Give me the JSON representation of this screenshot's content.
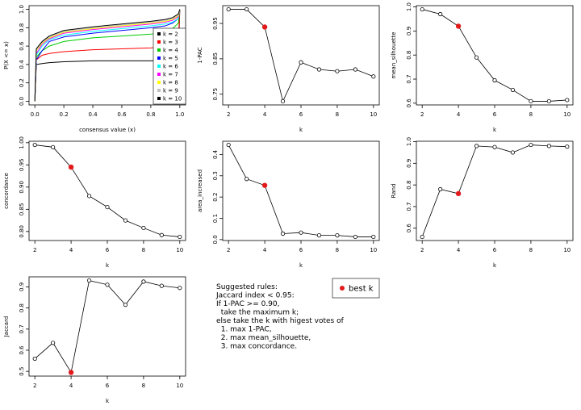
{
  "chart_data": [
    {
      "type": "ecdf",
      "xlabel": "consensus value (x)",
      "ylabel": "P(X <= x)",
      "xlim": [
        0,
        1
      ],
      "ylim": [
        0,
        1
      ],
      "xticks": [
        {
          "value": 0,
          "label": "0.0"
        },
        0.2,
        0.4,
        0.6,
        0.8,
        {
          "value": 1,
          "label": "1.0"
        }
      ],
      "yticks": [
        {
          "value": 0,
          "label": "0.0"
        },
        0.2,
        0.4,
        0.6,
        0.8,
        {
          "value": 1,
          "label": "1.0"
        }
      ],
      "x": [
        0,
        0.01,
        0.05,
        0.1,
        0.2,
        0.4,
        0.6,
        0.8,
        0.9,
        0.95,
        0.99,
        1
      ],
      "legend": "right",
      "series": [
        {
          "name": "k = 2",
          "color": "#000000",
          "values": [
            0,
            0.4,
            0.41,
            0.42,
            0.43,
            0.44,
            0.44,
            0.44,
            0.45,
            0.46,
            0.5,
            1
          ]
        },
        {
          "name": "k = 3",
          "color": "#ff0000",
          "values": [
            0,
            0.45,
            0.5,
            0.52,
            0.54,
            0.56,
            0.57,
            0.58,
            0.6,
            0.62,
            0.66,
            1
          ]
        },
        {
          "name": "k = 4",
          "color": "#00cd00",
          "values": [
            0,
            0.48,
            0.55,
            0.6,
            0.65,
            0.69,
            0.71,
            0.73,
            0.75,
            0.79,
            0.85,
            1
          ]
        },
        {
          "name": "k = 5",
          "color": "#0000ff",
          "values": [
            0,
            0.45,
            0.55,
            0.65,
            0.7,
            0.74,
            0.77,
            0.8,
            0.82,
            0.85,
            0.9,
            1
          ]
        },
        {
          "name": "k = 6",
          "color": "#00ffff",
          "values": [
            0,
            0.5,
            0.6,
            0.67,
            0.72,
            0.76,
            0.79,
            0.82,
            0.84,
            0.86,
            0.9,
            1
          ]
        },
        {
          "name": "k = 7",
          "color": "#ff00ff",
          "values": [
            0,
            0.52,
            0.62,
            0.68,
            0.74,
            0.78,
            0.81,
            0.84,
            0.86,
            0.88,
            0.92,
            1
          ]
        },
        {
          "name": "k = 8",
          "color": "#ffff00",
          "values": [
            0,
            0.55,
            0.63,
            0.69,
            0.75,
            0.79,
            0.82,
            0.85,
            0.87,
            0.89,
            0.93,
            1
          ]
        },
        {
          "name": "k = 9",
          "color": "#bebebe",
          "values": [
            0,
            0.56,
            0.64,
            0.7,
            0.76,
            0.8,
            0.83,
            0.86,
            0.88,
            0.9,
            0.94,
            1
          ]
        },
        {
          "name": "k = 10",
          "color": "#000000",
          "values": [
            0,
            0.57,
            0.65,
            0.71,
            0.77,
            0.81,
            0.84,
            0.87,
            0.89,
            0.91,
            0.95,
            1
          ]
        }
      ]
    },
    {
      "type": "line",
      "xlabel": "k",
      "ylabel": "1-PAC",
      "x": [
        2,
        3,
        4,
        5,
        6,
        7,
        8,
        9,
        10
      ],
      "best_k": 4,
      "values": [
        0.99,
        0.99,
        0.94,
        0.73,
        0.84,
        0.82,
        0.815,
        0.82,
        0.8
      ],
      "xlim": [
        2,
        10
      ],
      "ylim": [
        0.73,
        0.99
      ],
      "xticks": [
        2,
        4,
        6,
        8,
        10
      ],
      "yticks": [
        0.75,
        0.85,
        0.95
      ]
    },
    {
      "type": "line",
      "xlabel": "k",
      "ylabel": "mean_silhouette",
      "x": [
        2,
        3,
        4,
        5,
        6,
        7,
        8,
        9,
        10
      ],
      "best_k": 4,
      "values": [
        0.99,
        0.97,
        0.92,
        0.79,
        0.695,
        0.655,
        0.608,
        0.608,
        0.613
      ],
      "xlim": [
        2,
        10
      ],
      "ylim": [
        0.608,
        0.99
      ],
      "xticks": [
        2,
        4,
        6,
        8,
        10
      ],
      "yticks": [
        0.6,
        0.7,
        0.8,
        0.9,
        {
          "value": 1,
          "label": "1.0"
        }
      ]
    },
    {
      "type": "line",
      "xlabel": "k",
      "ylabel": "concordance",
      "x": [
        2,
        3,
        4,
        5,
        6,
        7,
        8,
        9,
        10
      ],
      "best_k": 4,
      "values": [
        0.995,
        0.99,
        0.945,
        0.88,
        0.855,
        0.825,
        0.808,
        0.792,
        0.788
      ],
      "xlim": [
        2,
        10
      ],
      "ylim": [
        0.788,
        0.995
      ],
      "xticks": [
        2,
        4,
        6,
        8,
        10
      ],
      "yticks": [
        {
          "value": 0.8,
          "label": "0.80"
        },
        0.85,
        {
          "value": 0.9,
          "label": "0.90"
        },
        0.95,
        {
          "value": 1,
          "label": "1.00"
        }
      ]
    },
    {
      "type": "line",
      "xlabel": "k",
      "ylabel": "area_increased",
      "x": [
        2,
        3,
        4,
        5,
        6,
        7,
        8,
        9,
        10
      ],
      "best_k": 4,
      "values": [
        0.445,
        0.285,
        0.255,
        0.028,
        0.033,
        0.02,
        0.02,
        0.013,
        0.013
      ],
      "xlim": [
        2,
        10
      ],
      "ylim": [
        0.013,
        0.445
      ],
      "xticks": [
        2,
        4,
        6,
        8,
        10
      ],
      "yticks": [
        {
          "value": 0,
          "label": "0.0"
        },
        0.1,
        0.2,
        0.3,
        0.4
      ]
    },
    {
      "type": "line",
      "xlabel": "k",
      "ylabel": "Rand",
      "x": [
        2,
        3,
        4,
        5,
        6,
        7,
        8,
        9,
        10
      ],
      "best_k": 4,
      "values": [
        0.56,
        0.78,
        0.76,
        0.98,
        0.975,
        0.95,
        0.985,
        0.98,
        0.977
      ],
      "xlim": [
        2,
        10
      ],
      "ylim": [
        0.56,
        0.985
      ],
      "xticks": [
        2,
        4,
        6,
        8,
        10
      ],
      "yticks": [
        0.6,
        0.7,
        0.8,
        0.9,
        {
          "value": 1,
          "label": "1.0"
        }
      ]
    },
    {
      "type": "line",
      "xlabel": "k",
      "ylabel": "Jaccard",
      "x": [
        2,
        3,
        4,
        5,
        6,
        7,
        8,
        9,
        10
      ],
      "best_k": 4,
      "values": [
        0.56,
        0.635,
        0.495,
        0.93,
        0.91,
        0.815,
        0.925,
        0.905,
        0.895
      ],
      "xlim": [
        2,
        10
      ],
      "ylim": [
        0.495,
        0.93
      ],
      "xticks": [
        2,
        4,
        6,
        8,
        10
      ],
      "yticks": [
        0.5,
        0.6,
        0.7,
        0.8,
        0.9
      ]
    }
  ],
  "rules": {
    "lines": [
      "Suggested rules:",
      "Jaccard index < 0.95:",
      "If 1-PAC >= 0.90,",
      "  take the maximum k;",
      "else take the k with higest votes of",
      "  1. max 1-PAC,",
      "  2. max mean_silhouette,",
      "  3. max concordance."
    ]
  },
  "best_legend": {
    "label": "best k",
    "color": "#e31a1c"
  }
}
